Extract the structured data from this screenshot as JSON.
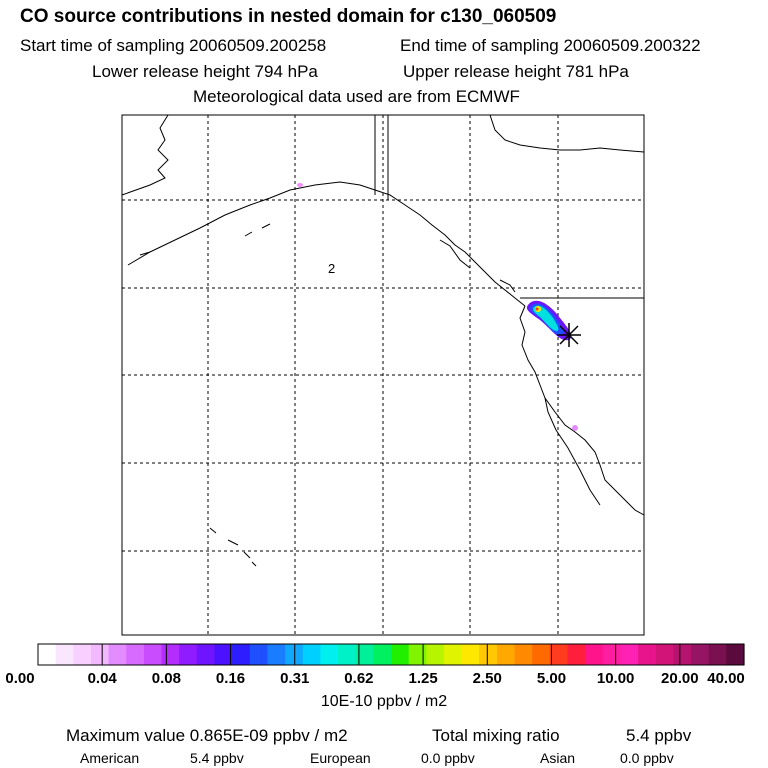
{
  "header": {
    "title": "CO  source contributions in nested domain for c130_060509",
    "start_label": "Start time of sampling 20060509.200258",
    "end_label": "End time of sampling 20060509.200322",
    "lower_label": "Lower release height  794 hPa",
    "upper_label": "Upper release height  781 hPa",
    "met_label": "Meteorological data used are from ECMWF"
  },
  "map": {
    "label_digit": "2",
    "plume_color": "#00e0e0",
    "marker_color": "#000000"
  },
  "colorbar": {
    "ticks": [
      "0.00",
      "0.04",
      "0.08",
      "0.16",
      "0.31",
      "0.62",
      "1.25",
      "2.50",
      "5.00",
      "10.00",
      "20.00",
      "40.00"
    ],
    "units": "10E-10 ppbv / m2",
    "colors": [
      "#ffffff",
      "#fbe6ff",
      "#f8d0ff",
      "#f3b9ff",
      "#e38cff",
      "#d76bff",
      "#c94cff",
      "#b42dff",
      "#8f1bff",
      "#6e14ff",
      "#4a12ff",
      "#2d1eff",
      "#1e50ff",
      "#1a7cff",
      "#10a8ff",
      "#00d0ff",
      "#00f0f0",
      "#00f0c8",
      "#00f09a",
      "#00f060",
      "#20f000",
      "#80f400",
      "#b6f400",
      "#e0f400",
      "#ffe800",
      "#ffc800",
      "#ffa800",
      "#ff8a00",
      "#ff6a00",
      "#ff3c1e",
      "#ff1e3c",
      "#ff148c",
      "#ff1ea0",
      "#ff20b4",
      "#e8148c",
      "#d21478",
      "#b4146e",
      "#961464",
      "#7a1050",
      "#5a0a3c"
    ]
  },
  "stats": {
    "max_label": "Maximum value  0.865E-09 ppbv / m2",
    "total_label": "Total mixing ratio",
    "total_value": "5.4 ppbv",
    "american_label": "American",
    "american_value": "5.4 ppbv",
    "european_label": "European",
    "european_value": "0.0 ppbv",
    "asian_label": "Asian",
    "asian_value": "0.0 ppbv"
  }
}
